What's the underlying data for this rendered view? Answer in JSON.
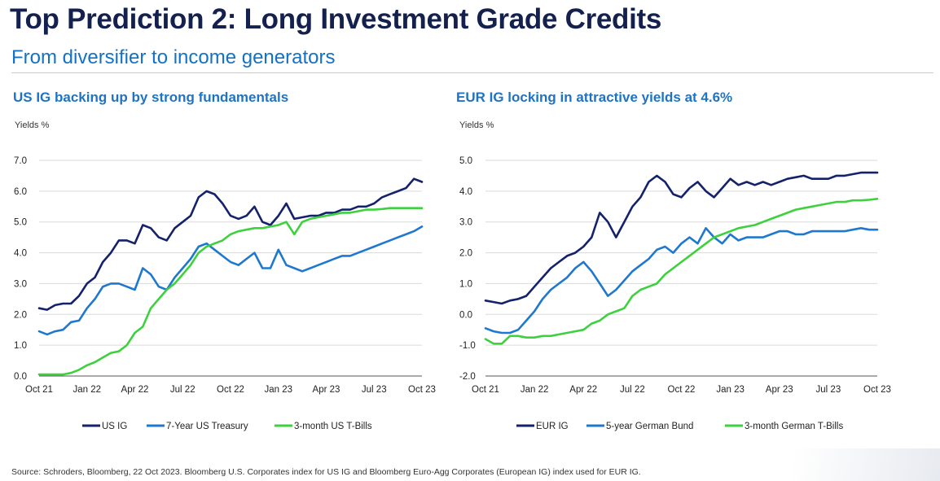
{
  "header": {
    "title": "Top Prediction 2: Long Investment Grade Credits",
    "subtitle": "From diversifier to income generators"
  },
  "footer": {
    "source": "Source: Schroders, Bloomberg, 22 Oct 2023. Bloomberg U.S. Corporates index for US IG and Bloomberg Euro-Agg Corporates (European IG) index used for EUR IG."
  },
  "chart_data": [
    {
      "type": "line",
      "title": "US IG backing up by strong fundamentals",
      "ylabel": "Yields %",
      "xlabel": "",
      "x_ticks": [
        "Oct 21",
        "Jan 22",
        "Apr 22",
        "Jul 22",
        "Oct 22",
        "Jan 23",
        "Apr 23",
        "Jul 23",
        "Oct 23"
      ],
      "y_ticks": [
        "0.0",
        "1.0",
        "2.0",
        "3.0",
        "4.0",
        "5.0",
        "6.0",
        "7.0"
      ],
      "ylim": [
        0,
        7
      ],
      "grid": "horizontal",
      "legend_position": "bottom",
      "x": [
        0,
        0.5,
        1,
        1.5,
        2,
        2.5,
        3,
        3.5,
        4,
        4.5,
        5,
        5.5,
        6,
        6.5,
        7,
        7.5,
        8,
        8.5,
        9,
        9.5,
        10,
        10.5,
        11,
        11.5,
        12,
        12.5,
        13,
        13.5,
        14,
        14.5,
        15,
        15.5,
        16,
        16.5,
        17,
        17.5,
        18,
        18.5,
        19,
        19.5,
        20,
        20.5,
        21,
        21.5,
        22,
        22.5,
        23,
        23.5,
        24
      ],
      "series": [
        {
          "name": "US IG",
          "color": "#14216b",
          "values": [
            2.2,
            2.15,
            2.3,
            2.35,
            2.35,
            2.6,
            3.0,
            3.2,
            3.7,
            4.0,
            4.4,
            4.4,
            4.3,
            4.9,
            4.8,
            4.5,
            4.4,
            4.8,
            5.0,
            5.2,
            5.8,
            6.0,
            5.9,
            5.6,
            5.2,
            5.1,
            5.2,
            5.5,
            5.0,
            4.9,
            5.2,
            5.6,
            5.1,
            5.15,
            5.2,
            5.2,
            5.3,
            5.3,
            5.4,
            5.4,
            5.5,
            5.5,
            5.6,
            5.8,
            5.9,
            6.0,
            6.1,
            6.4,
            6.3
          ]
        },
        {
          "name": "7-Year US Treasury",
          "color": "#1f78cf",
          "values": [
            1.45,
            1.35,
            1.45,
            1.5,
            1.75,
            1.8,
            2.2,
            2.5,
            2.9,
            3.0,
            3.0,
            2.9,
            2.8,
            3.5,
            3.3,
            2.9,
            2.8,
            3.2,
            3.5,
            3.8,
            4.2,
            4.3,
            4.1,
            3.9,
            3.7,
            3.6,
            3.8,
            4.0,
            3.5,
            3.5,
            4.1,
            3.6,
            3.5,
            3.4,
            3.5,
            3.6,
            3.7,
            3.8,
            3.9,
            3.9,
            4.0,
            4.1,
            4.2,
            4.3,
            4.4,
            4.5,
            4.6,
            4.7,
            4.85
          ]
        },
        {
          "name": "3-month US T-Bills",
          "color": "#3ed13e",
          "values": [
            0.05,
            0.05,
            0.05,
            0.05,
            0.1,
            0.2,
            0.35,
            0.45,
            0.6,
            0.75,
            0.8,
            1.0,
            1.4,
            1.6,
            2.2,
            2.5,
            2.8,
            3.0,
            3.3,
            3.6,
            4.0,
            4.2,
            4.3,
            4.4,
            4.6,
            4.7,
            4.75,
            4.8,
            4.8,
            4.85,
            4.9,
            5.0,
            4.6,
            5.0,
            5.1,
            5.15,
            5.2,
            5.25,
            5.3,
            5.3,
            5.35,
            5.4,
            5.4,
            5.42,
            5.45,
            5.45,
            5.45,
            5.45,
            5.45
          ]
        }
      ]
    },
    {
      "type": "line",
      "title": "EUR IG locking in attractive yields at 4.6%",
      "ylabel": "Yields %",
      "xlabel": "",
      "x_ticks": [
        "Oct 21",
        "Jan 22",
        "Apr 22",
        "Jul 22",
        "Oct 22",
        "Jan 23",
        "Apr 23",
        "Jul 23",
        "Oct 23"
      ],
      "y_ticks": [
        "-2.0",
        "-1.0",
        "0.0",
        "1.0",
        "2.0",
        "3.0",
        "4.0",
        "5.0"
      ],
      "ylim": [
        -2,
        5
      ],
      "grid": "horizontal",
      "legend_position": "bottom",
      "x": [
        0,
        0.5,
        1,
        1.5,
        2,
        2.5,
        3,
        3.5,
        4,
        4.5,
        5,
        5.5,
        6,
        6.5,
        7,
        7.5,
        8,
        8.5,
        9,
        9.5,
        10,
        10.5,
        11,
        11.5,
        12,
        12.5,
        13,
        13.5,
        14,
        14.5,
        15,
        15.5,
        16,
        16.5,
        17,
        17.5,
        18,
        18.5,
        19,
        19.5,
        20,
        20.5,
        21,
        21.5,
        22,
        22.5,
        23,
        23.5,
        24
      ],
      "series": [
        {
          "name": "EUR IG",
          "color": "#14216b",
          "values": [
            0.45,
            0.4,
            0.35,
            0.45,
            0.5,
            0.6,
            0.9,
            1.2,
            1.5,
            1.7,
            1.9,
            2.0,
            2.2,
            2.5,
            3.3,
            3.0,
            2.5,
            3.0,
            3.5,
            3.8,
            4.3,
            4.5,
            4.3,
            3.9,
            3.8,
            4.1,
            4.3,
            4.0,
            3.8,
            4.1,
            4.4,
            4.2,
            4.3,
            4.2,
            4.3,
            4.2,
            4.3,
            4.4,
            4.45,
            4.5,
            4.4,
            4.4,
            4.4,
            4.5,
            4.5,
            4.55,
            4.6,
            4.6,
            4.6
          ]
        },
        {
          "name": "5-year German Bund",
          "color": "#1f78cf",
          "values": [
            -0.45,
            -0.55,
            -0.6,
            -0.6,
            -0.5,
            -0.2,
            0.1,
            0.5,
            0.8,
            1.0,
            1.2,
            1.5,
            1.7,
            1.4,
            1.0,
            0.6,
            0.8,
            1.1,
            1.4,
            1.6,
            1.8,
            2.1,
            2.2,
            2.0,
            2.3,
            2.5,
            2.3,
            2.8,
            2.5,
            2.3,
            2.6,
            2.4,
            2.5,
            2.5,
            2.5,
            2.6,
            2.7,
            2.7,
            2.6,
            2.6,
            2.7,
            2.7,
            2.7,
            2.7,
            2.7,
            2.75,
            2.8,
            2.75,
            2.75
          ]
        },
        {
          "name": "3-month German T-Bills",
          "color": "#3ed13e",
          "values": [
            -0.8,
            -0.95,
            -0.95,
            -0.7,
            -0.7,
            -0.75,
            -0.75,
            -0.7,
            -0.7,
            -0.65,
            -0.6,
            -0.55,
            -0.5,
            -0.3,
            -0.2,
            0.0,
            0.1,
            0.2,
            0.6,
            0.8,
            0.9,
            1.0,
            1.3,
            1.5,
            1.7,
            1.9,
            2.1,
            2.3,
            2.5,
            2.6,
            2.7,
            2.8,
            2.85,
            2.9,
            3.0,
            3.1,
            3.2,
            3.3,
            3.4,
            3.45,
            3.5,
            3.55,
            3.6,
            3.65,
            3.65,
            3.7,
            3.7,
            3.72,
            3.75
          ]
        }
      ]
    }
  ]
}
